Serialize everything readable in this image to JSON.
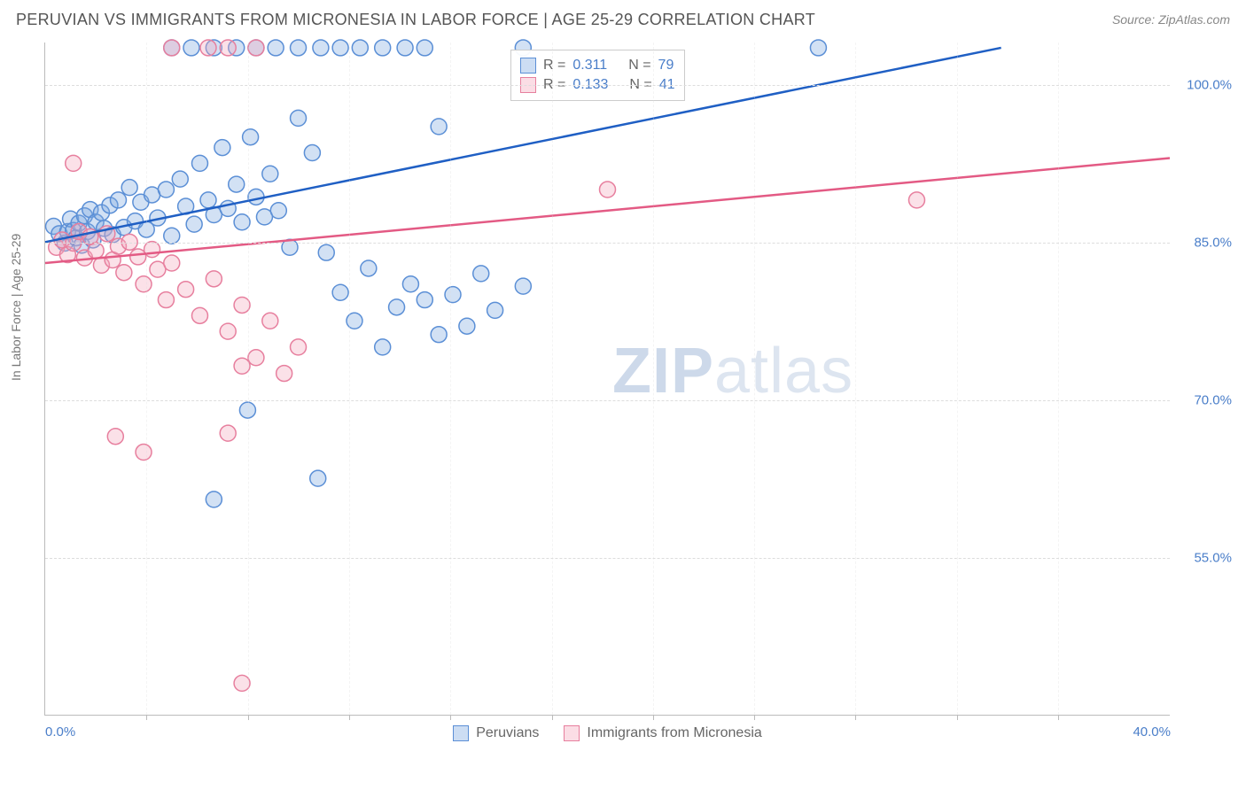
{
  "header": {
    "title": "PERUVIAN VS IMMIGRANTS FROM MICRONESIA IN LABOR FORCE | AGE 25-29 CORRELATION CHART",
    "source": "Source: ZipAtlas.com"
  },
  "axes": {
    "ylabel": "In Labor Force | Age 25-29",
    "x_min": 0.0,
    "x_max": 40.0,
    "y_min": 40.0,
    "y_max": 104.0,
    "y_ticks": [
      55.0,
      70.0,
      85.0,
      100.0
    ],
    "y_tick_labels": [
      "55.0%",
      "70.0%",
      "85.0%",
      "100.0%"
    ],
    "x_ticks": [
      0.0,
      40.0
    ],
    "x_tick_labels": [
      "0.0%",
      "40.0%"
    ],
    "x_minor_ticks": [
      3.6,
      7.2,
      10.8,
      14.4,
      18.0,
      21.6,
      25.2,
      28.8,
      32.4,
      36.0
    ]
  },
  "style": {
    "bg": "#ffffff",
    "grid_color": "#dddddd",
    "axis_color": "#bbbbbb",
    "tick_label_color": "#4a7ec9",
    "series_a_fill": "#7fa9e0",
    "series_a_stroke": "#5b8fd6",
    "series_b_fill": "#f4a9bd",
    "series_b_stroke": "#e77f9e",
    "trend_a": "#1f5fc4",
    "trend_b": "#e35a84",
    "marker_radius": 9
  },
  "watermark": {
    "text_a": "ZIP",
    "text_b": "atlas"
  },
  "legend": {
    "a": "Peruvians",
    "b": "Immigrants from Micronesia"
  },
  "stats": {
    "a": {
      "R": "0.311",
      "N": "79"
    },
    "b": {
      "R": "0.133",
      "N": "41"
    },
    "label_R": "R =",
    "label_N": "N ="
  },
  "trend_lines": {
    "a": {
      "x1": 0.0,
      "y1": 85.0,
      "x2": 34.0,
      "y2": 103.5
    },
    "b": {
      "x1": 0.0,
      "y1": 83.0,
      "x2": 40.0,
      "y2": 93.0
    }
  },
  "series_a": [
    [
      0.3,
      86.5
    ],
    [
      0.5,
      85.8
    ],
    [
      0.7,
      84.9
    ],
    [
      0.8,
      86.0
    ],
    [
      0.9,
      87.2
    ],
    [
      1.0,
      86.1
    ],
    [
      1.1,
      85.4
    ],
    [
      1.2,
      86.8
    ],
    [
      1.3,
      84.7
    ],
    [
      1.4,
      87.5
    ],
    [
      1.5,
      86.0
    ],
    [
      1.6,
      88.1
    ],
    [
      1.7,
      85.2
    ],
    [
      1.8,
      86.9
    ],
    [
      2.0,
      87.8
    ],
    [
      2.1,
      86.3
    ],
    [
      2.3,
      88.5
    ],
    [
      2.4,
      85.7
    ],
    [
      2.6,
      89.0
    ],
    [
      2.8,
      86.4
    ],
    [
      3.0,
      90.2
    ],
    [
      3.2,
      87.0
    ],
    [
      3.4,
      88.8
    ],
    [
      3.6,
      86.2
    ],
    [
      3.8,
      89.5
    ],
    [
      4.0,
      87.3
    ],
    [
      4.3,
      90.0
    ],
    [
      4.5,
      85.6
    ],
    [
      4.8,
      91.0
    ],
    [
      5.0,
      88.4
    ],
    [
      5.3,
      86.7
    ],
    [
      5.5,
      92.5
    ],
    [
      5.8,
      89.0
    ],
    [
      6.0,
      87.6
    ],
    [
      6.3,
      94.0
    ],
    [
      6.5,
      88.2
    ],
    [
      6.8,
      90.5
    ],
    [
      7.0,
      86.9
    ],
    [
      7.3,
      95.0
    ],
    [
      7.5,
      89.3
    ],
    [
      7.8,
      87.4
    ],
    [
      8.0,
      91.5
    ],
    [
      8.3,
      88.0
    ],
    [
      8.7,
      84.5
    ],
    [
      9.0,
      96.8
    ],
    [
      9.5,
      93.5
    ],
    [
      10.0,
      84.0
    ],
    [
      10.5,
      80.2
    ],
    [
      11.0,
      77.5
    ],
    [
      11.5,
      82.5
    ],
    [
      12.0,
      75.0
    ],
    [
      12.5,
      78.8
    ],
    [
      13.0,
      81.0
    ],
    [
      13.5,
      79.5
    ],
    [
      14.0,
      76.2
    ],
    [
      14.5,
      80.0
    ],
    [
      15.0,
      77.0
    ],
    [
      15.5,
      82.0
    ],
    [
      16.0,
      78.5
    ],
    [
      17.0,
      80.8
    ],
    [
      7.2,
      69.0
    ],
    [
      9.7,
      62.5
    ],
    [
      6.0,
      60.5
    ],
    [
      4.5,
      103.5
    ],
    [
      5.2,
      103.5
    ],
    [
      6.0,
      103.5
    ],
    [
      6.8,
      103.5
    ],
    [
      7.5,
      103.5
    ],
    [
      8.2,
      103.5
    ],
    [
      9.0,
      103.5
    ],
    [
      9.8,
      103.5
    ],
    [
      10.5,
      103.5
    ],
    [
      11.2,
      103.5
    ],
    [
      12.0,
      103.5
    ],
    [
      12.8,
      103.5
    ],
    [
      13.5,
      103.5
    ],
    [
      17.0,
      103.5
    ],
    [
      27.5,
      103.5
    ],
    [
      14.0,
      96.0
    ]
  ],
  "series_b": [
    [
      0.4,
      84.5
    ],
    [
      0.6,
      85.2
    ],
    [
      0.8,
      83.8
    ],
    [
      1.0,
      84.9
    ],
    [
      1.2,
      86.0
    ],
    [
      1.4,
      83.5
    ],
    [
      1.6,
      85.5
    ],
    [
      1.8,
      84.2
    ],
    [
      2.0,
      82.8
    ],
    [
      2.2,
      85.8
    ],
    [
      2.4,
      83.3
    ],
    [
      2.6,
      84.6
    ],
    [
      2.8,
      82.1
    ],
    [
      3.0,
      85.0
    ],
    [
      3.3,
      83.6
    ],
    [
      3.5,
      81.0
    ],
    [
      3.8,
      84.3
    ],
    [
      4.0,
      82.4
    ],
    [
      4.3,
      79.5
    ],
    [
      4.5,
      83.0
    ],
    [
      5.0,
      80.5
    ],
    [
      5.5,
      78.0
    ],
    [
      6.0,
      81.5
    ],
    [
      6.5,
      76.5
    ],
    [
      7.0,
      79.0
    ],
    [
      7.5,
      74.0
    ],
    [
      8.0,
      77.5
    ],
    [
      8.5,
      72.5
    ],
    [
      9.0,
      75.0
    ],
    [
      1.0,
      92.5
    ],
    [
      2.5,
      66.5
    ],
    [
      3.5,
      65.0
    ],
    [
      6.5,
      66.8
    ],
    [
      7.0,
      73.2
    ],
    [
      7.0,
      43.0
    ],
    [
      4.5,
      103.5
    ],
    [
      7.5,
      103.5
    ],
    [
      20.0,
      90.0
    ],
    [
      31.0,
      89.0
    ],
    [
      5.8,
      103.5
    ],
    [
      6.5,
      103.5
    ]
  ]
}
